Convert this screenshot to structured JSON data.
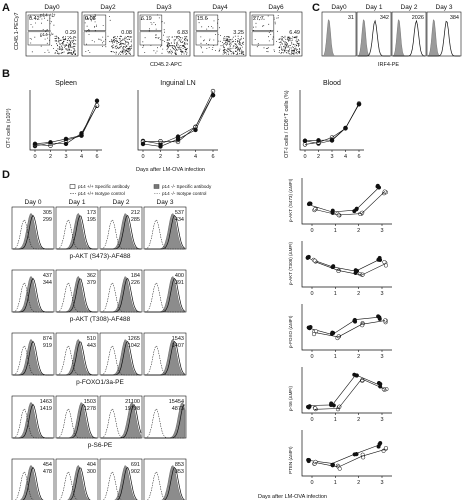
{
  "panelA": {
    "letter": "A",
    "days": [
      "Day0",
      "Day2",
      "Day3",
      "Day4",
      "Day6"
    ],
    "ylabel": "CD45.1-PECy7",
    "xlabel": "CD45.2-APC",
    "legend_wt": "p14 +/+",
    "legend_ko": "p14 -/-",
    "top_values": [
      "",
      "0.06",
      "6.19",
      "13.6",
      "27.7"
    ],
    "wt_values": [
      "0.42",
      "0.07",
      "",
      "",
      ""
    ],
    "ko_values": [
      "0.29",
      "0.08",
      "6.83",
      "3.25",
      "6.49"
    ]
  },
  "panelB": {
    "letter": "B",
    "titles": [
      "Spleen",
      "Inguinal LN",
      "Blood"
    ],
    "ylabel_left": "OT-I cells (x10⁵)",
    "ylabel_right": "OT-I cells / CD8⁺T cells (%)",
    "xlabel": "Days after LM-OVA infection",
    "ticks": [
      "0",
      "2",
      "3",
      "4",
      "6"
    ]
  },
  "panelC": {
    "letter": "C",
    "days": [
      "Day0",
      "Day 1",
      "Day 2",
      "Day 3"
    ],
    "values": [
      "31",
      "342",
      "2026",
      "384"
    ],
    "xlabel": "IRF4-PE"
  },
  "panelD": {
    "letter": "D",
    "legend": [
      "p14 +/+ Specific antibody",
      "p14 -/- Specific antibody",
      "p14 +/+ Isotype control",
      "p14 -/- Isotype control"
    ],
    "days": [
      "Day 0",
      "Day 1",
      "Day 2",
      "Day 3"
    ],
    "rows": [
      {
        "label": "p-AKT (S473)-AF488",
        "top": [
          "305",
          "173",
          "212",
          "537"
        ],
        "bottom": [
          "299",
          "195",
          "285",
          "434"
        ]
      },
      {
        "label": "p-AKT (T308)-AF488",
        "top": [
          "437",
          "362",
          "184",
          "400"
        ],
        "bottom": [
          "344",
          "379",
          "226",
          "391"
        ]
      },
      {
        "label": "p-FOXO1/3a-PE",
        "top": [
          "874",
          "510",
          "1265",
          "1543"
        ],
        "bottom": [
          "919",
          "443",
          "1042",
          "1407"
        ]
      },
      {
        "label": "p-S6-PE",
        "top": [
          "1463",
          "1503",
          "21100",
          "15454"
        ],
        "bottom": [
          "1419",
          "1278",
          "19798",
          "4873"
        ]
      },
      {
        "label": "PTEN-PE",
        "top": [
          "454",
          "404",
          "691",
          "853"
        ],
        "bottom": [
          "478",
          "300",
          "902",
          "853"
        ]
      }
    ],
    "right_ylabels": [
      "p-AKT (S473) (ΔMFI)",
      "p-AKT (T308) (ΔMFI)",
      "p-FOXO (ΔMFI)",
      "p-S6 (ΔMFI)",
      "PTEN (ΔMFI)"
    ],
    "right_xticks": [
      "0",
      "1",
      "2",
      "3"
    ],
    "right_xlabel": "Days after LM-OVA infection"
  }
}
